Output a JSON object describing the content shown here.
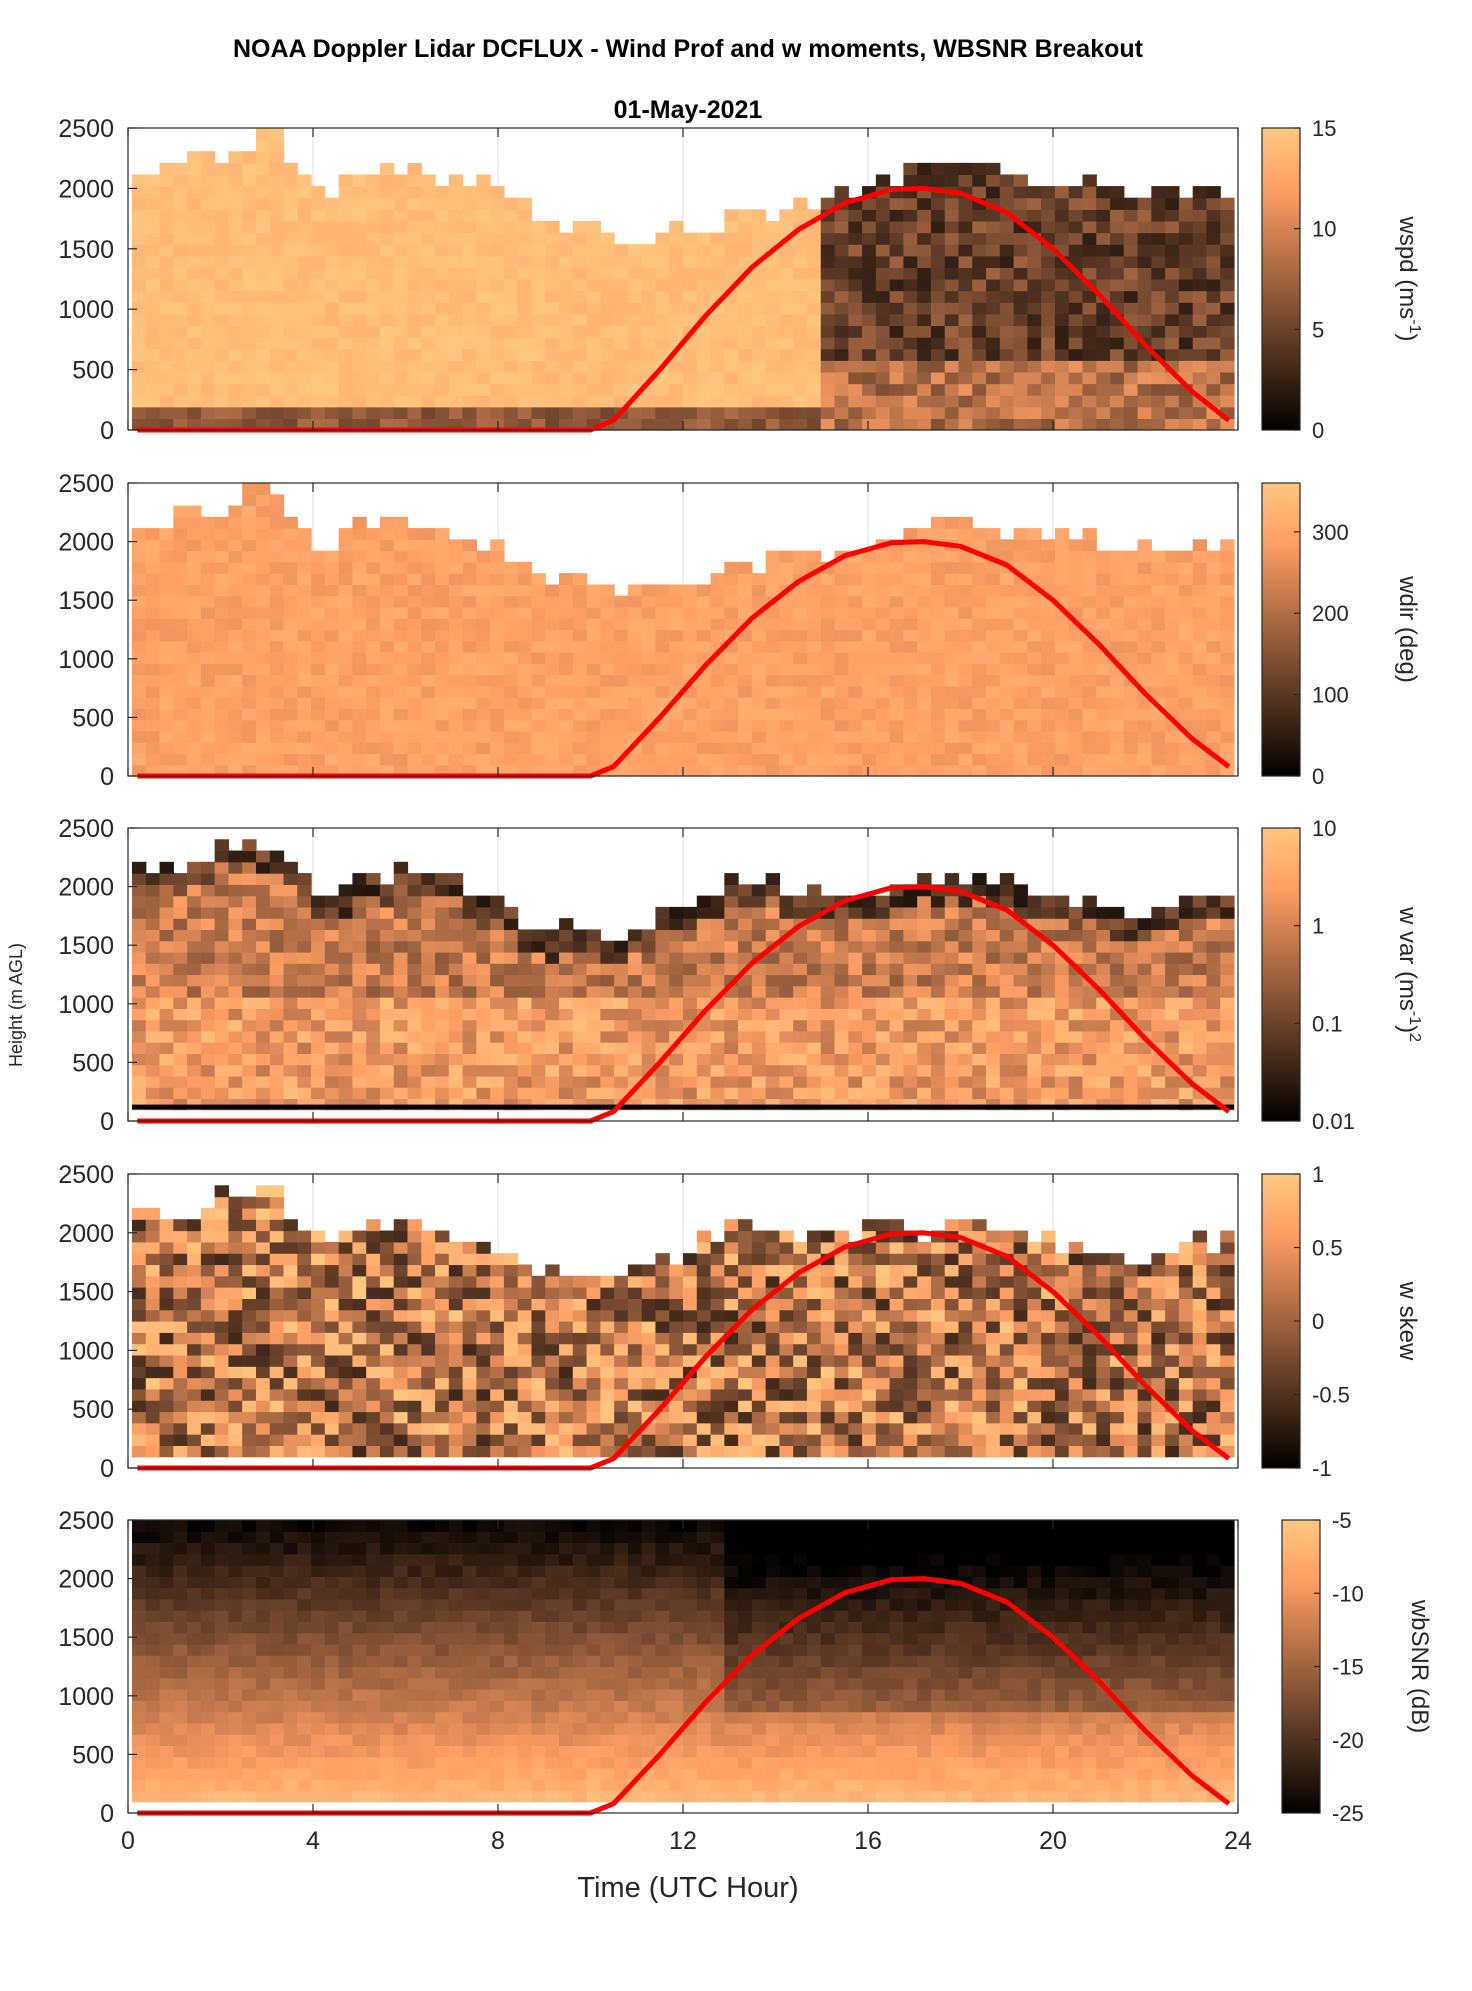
{
  "title": "NOAA Doppler Lidar DCFLUX - Wind Prof and w moments, WBSNR Breakout",
  "subtitle": "01-May-2021",
  "xlabel": "Time (UTC Hour)",
  "ylabel": "Height (m AGL)",
  "colors": {
    "sun_curve": "#ff0000",
    "colormap_low": "#000000",
    "colormap_high": "#ffc790",
    "axis": "#262626",
    "grid": "#dcdcdc"
  },
  "chart_data": [
    {
      "type": "heatmap",
      "name": "wspd",
      "label": "wspd (ms",
      "label_sup": "-1",
      "label_post": ")",
      "x_range": [
        0,
        24
      ],
      "y_range": [
        0,
        2500
      ],
      "x_ticks": [
        "0",
        "4",
        "8",
        "12",
        "16",
        "20",
        "24"
      ],
      "y_ticks": [
        "0",
        "500",
        "1000",
        "1500",
        "2000",
        "2500"
      ],
      "colorbar": {
        "min": 0,
        "max": 15,
        "ticks": [
          "0",
          "5",
          "10",
          "15"
        ],
        "tick_values": [
          0,
          5,
          10,
          15
        ]
      },
      "data_top_m": [
        2000,
        2150,
        2250,
        2450,
        1900,
        2100,
        2100,
        2050,
        1900,
        1650,
        1600,
        1500,
        1600,
        1700,
        1800,
        1850,
        1950,
        2100,
        2150,
        2050,
        2000,
        1950,
        1900,
        1900,
        1900
      ]
    },
    {
      "type": "heatmap",
      "name": "wdir",
      "label": "wdir (deg)",
      "x_range": [
        0,
        24
      ],
      "y_range": [
        0,
        2500
      ],
      "x_ticks": [
        "0",
        "4",
        "8",
        "12",
        "16",
        "20",
        "24"
      ],
      "y_ticks": [
        "0",
        "500",
        "1000",
        "1500",
        "2000",
        "2500"
      ],
      "colorbar": {
        "min": 0,
        "max": 360,
        "ticks": [
          "0",
          "100",
          "200",
          "300"
        ],
        "tick_values": [
          0,
          100,
          200,
          300
        ]
      },
      "data_top_m": [
        2000,
        2150,
        2250,
        2450,
        1900,
        2100,
        2100,
        2050,
        1900,
        1650,
        1600,
        1500,
        1600,
        1700,
        1800,
        1850,
        1950,
        2100,
        2150,
        2050,
        2000,
        1950,
        1900,
        1900,
        1900
      ]
    },
    {
      "type": "heatmap",
      "name": "wvar",
      "label": "w var (ms",
      "label_sup": "-1",
      "label_post": ")",
      "label_sup2": "2",
      "x_range": [
        0,
        24
      ],
      "y_range": [
        0,
        2500
      ],
      "x_ticks": [
        "0",
        "4",
        "8",
        "12",
        "16",
        "20",
        "24"
      ],
      "y_ticks": [
        "0",
        "500",
        "1000",
        "1500",
        "2000",
        "2500"
      ],
      "colorbar": {
        "min": 0.01,
        "max": 10,
        "scale": "log",
        "ticks": [
          "0.01",
          "0.1",
          "1",
          "10"
        ],
        "tick_values": [
          0.01,
          0.1,
          1,
          10
        ]
      },
      "data_top_m": [
        2200,
        2100,
        2300,
        2350,
        1900,
        2000,
        2100,
        2000,
        1800,
        1600,
        1550,
        1600,
        1800,
        2000,
        1950,
        1900,
        1950,
        2000,
        2000,
        1950,
        1850,
        1800,
        1700,
        1850,
        1900
      ]
    },
    {
      "type": "heatmap",
      "name": "wskew",
      "label": "w skew",
      "x_range": [
        0,
        24
      ],
      "y_range": [
        0,
        2500
      ],
      "x_ticks": [
        "0",
        "4",
        "8",
        "12",
        "16",
        "20",
        "24"
      ],
      "y_ticks": [
        "0",
        "500",
        "1000",
        "1500",
        "2000",
        "2500"
      ],
      "colorbar": {
        "min": -1,
        "max": 1,
        "ticks": [
          "-1",
          "-0.5",
          "0",
          "0.5",
          "1"
        ],
        "tick_values": [
          -1,
          -0.5,
          0,
          0.5,
          1
        ]
      },
      "data_top_m": [
        2200,
        2100,
        2300,
        2350,
        1900,
        2000,
        2100,
        2000,
        1800,
        1600,
        1550,
        1600,
        1800,
        2000,
        1950,
        1900,
        1950,
        2000,
        2000,
        1950,
        1850,
        1800,
        1700,
        1850,
        1900
      ]
    },
    {
      "type": "heatmap",
      "name": "wbsnr",
      "label": "wbSNR (dB)",
      "x_range": [
        0,
        24
      ],
      "y_range": [
        0,
        2500
      ],
      "x_ticks": [
        "0",
        "4",
        "8",
        "12",
        "16",
        "20",
        "24"
      ],
      "y_ticks": [
        "0",
        "500",
        "1000",
        "1500",
        "2000",
        "2500"
      ],
      "colorbar": {
        "min": -25,
        "max": -5,
        "ticks": [
          "-25",
          "-20",
          "-15",
          "-10",
          "-5"
        ],
        "tick_values": [
          -25,
          -20,
          -15,
          -10,
          -5
        ]
      },
      "data_top_m": [
        2500,
        2500,
        2500,
        2500,
        2500,
        2500,
        2500,
        2500,
        2500,
        2500,
        2500,
        2500,
        2500,
        2500,
        2500,
        2500,
        2500,
        2500,
        2500,
        2500,
        2500,
        2500,
        2500,
        2500,
        2500
      ]
    }
  ],
  "sun_curve": {
    "type": "line",
    "x": [
      0.2,
      10.0,
      10.5,
      11.5,
      12.5,
      13.5,
      14.5,
      15.5,
      16.5,
      17.2,
      18.0,
      19.0,
      20.0,
      21.0,
      22.0,
      23.0,
      23.8
    ],
    "y": [
      0,
      0,
      80,
      500,
      950,
      1350,
      1660,
      1880,
      1990,
      2000,
      1960,
      1800,
      1500,
      1120,
      700,
      320,
      80
    ]
  }
}
